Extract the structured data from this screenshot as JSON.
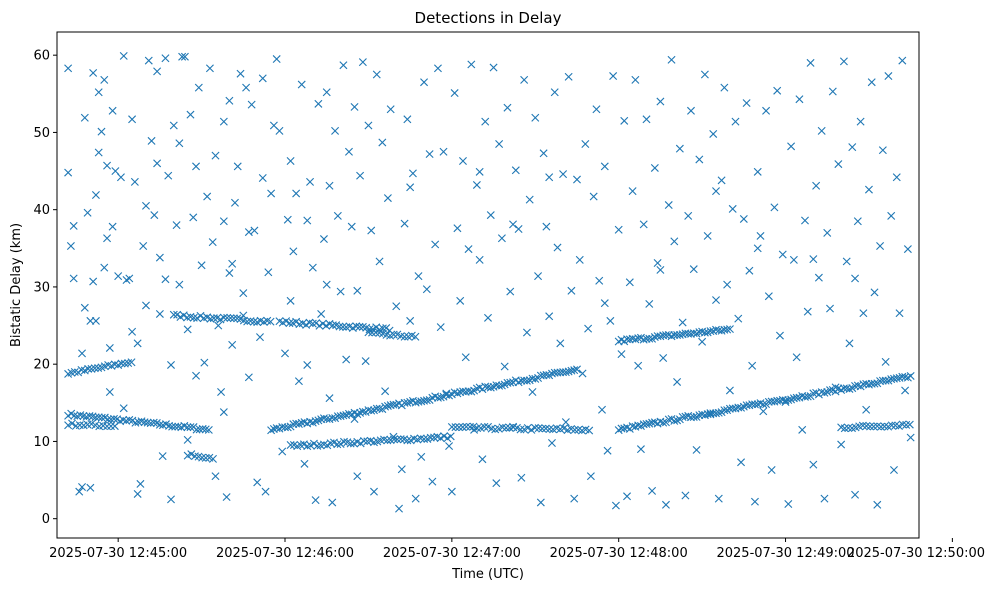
{
  "chart_data": {
    "type": "scatter",
    "title": "Detections in Delay",
    "xlabel": "Time (UTC)",
    "ylabel": "Bistatic Delay (km)",
    "marker": "x",
    "color": "#1f77b4",
    "x_unit": "seconds after 2025-07-30 12:44:40 UTC",
    "xlim": [
      -2,
      308
    ],
    "ylim": [
      -2.5,
      63
    ],
    "x_ticks": [
      {
        "value": 20,
        "label": "2025-07-30 12:45:00"
      },
      {
        "value": 80,
        "label": "2025-07-30 12:46:00"
      },
      {
        "value": 140,
        "label": "2025-07-30 12:47:00"
      },
      {
        "value": 200,
        "label": "2025-07-30 12:48:00"
      },
      {
        "value": 260,
        "label": "2025-07-30 12:49:00"
      },
      {
        "value": 320,
        "label": "2025-07-30 12:50:00"
      }
    ],
    "y_ticks": [
      {
        "value": 0,
        "label": "0"
      },
      {
        "value": 10,
        "label": "10"
      },
      {
        "value": 20,
        "label": "20"
      },
      {
        "value": 30,
        "label": "30"
      },
      {
        "value": 40,
        "label": "40"
      },
      {
        "value": 50,
        "label": "50"
      },
      {
        "value": 60,
        "label": "60"
      }
    ],
    "tracks": [
      {
        "name": "track-lower-1",
        "x_start": 2,
        "x_end": 53,
        "y_start": 13.5,
        "y_end": 11.5,
        "step": 1.1
      },
      {
        "name": "track-lower-2",
        "x_start": 2,
        "x_end": 20,
        "y_start": 12.2,
        "y_end": 12.0,
        "step": 1.4
      },
      {
        "name": "track-rise-1",
        "x_start": 2,
        "x_end": 25,
        "y_start": 18.8,
        "y_end": 20.3,
        "step": 1.2
      },
      {
        "name": "track-upper-1",
        "x_start": 40,
        "x_end": 75,
        "y_start": 26.3,
        "y_end": 25.5,
        "step": 1.2
      },
      {
        "name": "track-upper-2",
        "x_start": 78,
        "x_end": 118,
        "y_start": 25.5,
        "y_end": 24.5,
        "step": 1.2
      },
      {
        "name": "track-upper-3",
        "x_start": 110,
        "x_end": 128,
        "y_start": 24.0,
        "y_end": 23.5,
        "step": 1.3
      },
      {
        "name": "track-long-rise",
        "x_start": 75,
        "x_end": 185,
        "y_start": 11.5,
        "y_end": 19.3,
        "step": 1.0
      },
      {
        "name": "track-mid-flat",
        "x_start": 140,
        "x_end": 190,
        "y_start": 11.8,
        "y_end": 11.5,
        "step": 1.3
      },
      {
        "name": "track-low-flat",
        "x_start": 82,
        "x_end": 140,
        "y_start": 9.4,
        "y_end": 10.6,
        "step": 1.2
      },
      {
        "name": "track-right-rise",
        "x_start": 200,
        "x_end": 305,
        "y_start": 11.5,
        "y_end": 18.4,
        "step": 1.0
      },
      {
        "name": "track-right-upper",
        "x_start": 200,
        "x_end": 240,
        "y_start": 23.0,
        "y_end": 24.5,
        "step": 1.0
      },
      {
        "name": "track-right-low",
        "x_start": 280,
        "x_end": 305,
        "y_start": 11.8,
        "y_end": 12.2,
        "step": 1.3
      },
      {
        "name": "track-low-dip",
        "x_start": 45,
        "x_end": 55,
        "y_start": 8.3,
        "y_end": 7.8,
        "step": 1.3
      }
    ],
    "scatter_points": [
      [
        2,
        58.3
      ],
      [
        2,
        44.8
      ],
      [
        3,
        35.3
      ],
      [
        4,
        37.9
      ],
      [
        4,
        31.1
      ],
      [
        6,
        3.5
      ],
      [
        7,
        4.1
      ],
      [
        7,
        21.4
      ],
      [
        8,
        27.3
      ],
      [
        8,
        51.9
      ],
      [
        9,
        39.6
      ],
      [
        10,
        4.0
      ],
      [
        11,
        57.7
      ],
      [
        11,
        30.7
      ],
      [
        12,
        25.6
      ],
      [
        12,
        41.9
      ],
      [
        13,
        55.2
      ],
      [
        13,
        47.4
      ],
      [
        14,
        50.1
      ],
      [
        15,
        32.5
      ],
      [
        15,
        56.8
      ],
      [
        16,
        36.3
      ],
      [
        16,
        45.7
      ],
      [
        17,
        22.1
      ],
      [
        17,
        16.4
      ],
      [
        18,
        52.8
      ],
      [
        18,
        37.8
      ],
      [
        19,
        45.0
      ],
      [
        20,
        31.4
      ],
      [
        21,
        44.2
      ],
      [
        22,
        59.9
      ],
      [
        22,
        14.3
      ],
      [
        23,
        30.9
      ],
      [
        24,
        31.1
      ],
      [
        25,
        24.2
      ],
      [
        25,
        51.7
      ],
      [
        26,
        43.6
      ],
      [
        27,
        3.2
      ],
      [
        27,
        22.7
      ],
      [
        28,
        4.5
      ],
      [
        29,
        35.3
      ],
      [
        30,
        27.6
      ],
      [
        30,
        40.5
      ],
      [
        31,
        59.3
      ],
      [
        32,
        48.9
      ],
      [
        33,
        39.3
      ],
      [
        34,
        57.9
      ],
      [
        34,
        46.0
      ],
      [
        35,
        33.8
      ],
      [
        35,
        26.5
      ],
      [
        36,
        8.1
      ],
      [
        37,
        59.6
      ],
      [
        37,
        31.0
      ],
      [
        38,
        44.4
      ],
      [
        39,
        19.9
      ],
      [
        39,
        2.5
      ],
      [
        40,
        50.9
      ],
      [
        41,
        38.0
      ],
      [
        42,
        48.6
      ],
      [
        42,
        30.3
      ],
      [
        43,
        59.8
      ],
      [
        44,
        59.8
      ],
      [
        45,
        24.5
      ],
      [
        45,
        10.2
      ],
      [
        46,
        52.3
      ],
      [
        47,
        39.0
      ],
      [
        48,
        18.5
      ],
      [
        48,
        45.6
      ],
      [
        49,
        55.8
      ],
      [
        50,
        32.8
      ],
      [
        51,
        20.2
      ],
      [
        52,
        41.7
      ],
      [
        53,
        58.3
      ],
      [
        54,
        35.8
      ],
      [
        55,
        5.5
      ],
      [
        55,
        47.0
      ],
      [
        56,
        25.0
      ],
      [
        57,
        16.4
      ],
      [
        58,
        51.4
      ],
      [
        58,
        38.5
      ],
      [
        59,
        2.8
      ],
      [
        60,
        54.1
      ],
      [
        61,
        33.0
      ],
      [
        61,
        22.5
      ],
      [
        62,
        40.9
      ],
      [
        63,
        45.6
      ],
      [
        64,
        57.6
      ],
      [
        65,
        29.2
      ],
      [
        66,
        55.8
      ],
      [
        67,
        37.1
      ],
      [
        67,
        18.3
      ],
      [
        68,
        53.6
      ],
      [
        69,
        37.3
      ],
      [
        70,
        4.7
      ],
      [
        71,
        23.5
      ],
      [
        72,
        57.0
      ],
      [
        72,
        44.1
      ],
      [
        73,
        3.5
      ],
      [
        74,
        31.9
      ],
      [
        75,
        42.1
      ],
      [
        76,
        50.9
      ],
      [
        77,
        59.5
      ],
      [
        78,
        50.2
      ],
      [
        79,
        8.7
      ],
      [
        80,
        21.4
      ],
      [
        81,
        38.7
      ],
      [
        82,
        46.3
      ],
      [
        82,
        28.2
      ],
      [
        83,
        34.6
      ],
      [
        84,
        42.1
      ],
      [
        85,
        17.8
      ],
      [
        86,
        56.2
      ],
      [
        87,
        7.1
      ],
      [
        88,
        38.6
      ],
      [
        88,
        19.9
      ],
      [
        89,
        43.6
      ],
      [
        90,
        32.5
      ],
      [
        91,
        2.4
      ],
      [
        92,
        53.7
      ],
      [
        93,
        26.5
      ],
      [
        94,
        36.2
      ],
      [
        95,
        55.2
      ],
      [
        96,
        15.6
      ],
      [
        96,
        43.1
      ],
      [
        97,
        2.1
      ],
      [
        98,
        50.2
      ],
      [
        99,
        39.2
      ],
      [
        100,
        29.4
      ],
      [
        101,
        58.7
      ],
      [
        102,
        20.6
      ],
      [
        103,
        47.5
      ],
      [
        104,
        37.8
      ],
      [
        105,
        53.3
      ],
      [
        106,
        29.5
      ],
      [
        106,
        5.5
      ],
      [
        107,
        44.4
      ],
      [
        108,
        59.1
      ],
      [
        109,
        20.4
      ],
      [
        110,
        50.9
      ],
      [
        111,
        37.3
      ],
      [
        112,
        3.5
      ],
      [
        113,
        57.5
      ],
      [
        114,
        33.3
      ],
      [
        115,
        48.7
      ],
      [
        116,
        16.5
      ],
      [
        117,
        41.5
      ],
      [
        118,
        53.0
      ],
      [
        119,
        10.6
      ],
      [
        120,
        27.5
      ],
      [
        121,
        1.3
      ],
      [
        122,
        6.4
      ],
      [
        123,
        38.2
      ],
      [
        124,
        51.7
      ],
      [
        125,
        25.6
      ],
      [
        126,
        44.7
      ],
      [
        127,
        2.6
      ],
      [
        128,
        31.4
      ],
      [
        129,
        8.0
      ],
      [
        130,
        56.5
      ],
      [
        131,
        29.7
      ],
      [
        132,
        47.2
      ],
      [
        133,
        4.8
      ],
      [
        134,
        35.5
      ],
      [
        135,
        58.3
      ],
      [
        136,
        24.8
      ],
      [
        137,
        47.5
      ],
      [
        138,
        16.2
      ],
      [
        139,
        9.4
      ],
      [
        140,
        3.5
      ],
      [
        141,
        55.1
      ],
      [
        142,
        37.6
      ],
      [
        143,
        28.2
      ],
      [
        144,
        46.3
      ],
      [
        145,
        20.9
      ],
      [
        146,
        34.9
      ],
      [
        147,
        58.8
      ],
      [
        148,
        11.5
      ],
      [
        149,
        43.2
      ],
      [
        150,
        33.5
      ],
      [
        151,
        7.7
      ],
      [
        152,
        51.4
      ],
      [
        153,
        26.0
      ],
      [
        154,
        39.3
      ],
      [
        155,
        58.4
      ],
      [
        156,
        4.6
      ],
      [
        157,
        48.5
      ],
      [
        158,
        36.3
      ],
      [
        159,
        19.7
      ],
      [
        160,
        53.2
      ],
      [
        161,
        29.4
      ],
      [
        162,
        11.9
      ],
      [
        163,
        45.1
      ],
      [
        164,
        37.5
      ],
      [
        165,
        5.3
      ],
      [
        166,
        56.8
      ],
      [
        167,
        24.1
      ],
      [
        168,
        41.3
      ],
      [
        169,
        16.4
      ],
      [
        170,
        51.9
      ],
      [
        171,
        31.4
      ],
      [
        172,
        2.1
      ],
      [
        173,
        47.3
      ],
      [
        174,
        37.8
      ],
      [
        175,
        26.2
      ],
      [
        176,
        9.8
      ],
      [
        177,
        55.2
      ],
      [
        178,
        35.1
      ],
      [
        179,
        22.7
      ],
      [
        180,
        44.6
      ],
      [
        181,
        12.5
      ],
      [
        182,
        57.2
      ],
      [
        183,
        29.5
      ],
      [
        184,
        2.6
      ],
      [
        185,
        43.9
      ],
      [
        186,
        33.5
      ],
      [
        187,
        18.8
      ],
      [
        188,
        48.5
      ],
      [
        189,
        24.6
      ],
      [
        190,
        5.5
      ],
      [
        191,
        41.7
      ],
      [
        192,
        53.0
      ],
      [
        193,
        30.8
      ],
      [
        194,
        14.1
      ],
      [
        195,
        45.6
      ],
      [
        196,
        8.8
      ],
      [
        197,
        25.6
      ],
      [
        198,
        57.3
      ],
      [
        199,
        1.7
      ],
      [
        200,
        37.4
      ],
      [
        201,
        21.3
      ],
      [
        202,
        51.5
      ],
      [
        203,
        2.9
      ],
      [
        204,
        30.6
      ],
      [
        205,
        42.4
      ],
      [
        206,
        56.8
      ],
      [
        207,
        19.8
      ],
      [
        208,
        9.0
      ],
      [
        209,
        38.1
      ],
      [
        210,
        51.7
      ],
      [
        211,
        27.8
      ],
      [
        212,
        3.6
      ],
      [
        213,
        45.4
      ],
      [
        214,
        33.1
      ],
      [
        215,
        54.0
      ],
      [
        216,
        20.8
      ],
      [
        217,
        1.8
      ],
      [
        218,
        40.6
      ],
      [
        219,
        59.4
      ],
      [
        220,
        35.9
      ],
      [
        221,
        17.7
      ],
      [
        222,
        47.9
      ],
      [
        223,
        25.4
      ],
      [
        224,
        3.0
      ],
      [
        225,
        39.2
      ],
      [
        226,
        52.8
      ],
      [
        227,
        32.3
      ],
      [
        228,
        8.9
      ],
      [
        229,
        46.5
      ],
      [
        230,
        22.9
      ],
      [
        231,
        57.5
      ],
      [
        232,
        36.6
      ],
      [
        233,
        13.5
      ],
      [
        234,
        49.8
      ],
      [
        235,
        28.3
      ],
      [
        236,
        2.6
      ],
      [
        237,
        43.8
      ],
      [
        238,
        55.8
      ],
      [
        239,
        30.3
      ],
      [
        240,
        16.6
      ],
      [
        241,
        40.1
      ],
      [
        242,
        51.4
      ],
      [
        243,
        25.9
      ],
      [
        244,
        7.3
      ],
      [
        245,
        38.8
      ],
      [
        246,
        53.8
      ],
      [
        247,
        32.1
      ],
      [
        248,
        19.8
      ],
      [
        249,
        2.2
      ],
      [
        250,
        44.9
      ],
      [
        251,
        36.6
      ],
      [
        252,
        13.9
      ],
      [
        253,
        52.8
      ],
      [
        254,
        28.8
      ],
      [
        255,
        6.3
      ],
      [
        256,
        40.3
      ],
      [
        257,
        55.4
      ],
      [
        258,
        23.7
      ],
      [
        259,
        34.2
      ],
      [
        260,
        15.1
      ],
      [
        261,
        1.9
      ],
      [
        262,
        48.2
      ],
      [
        263,
        33.5
      ],
      [
        264,
        20.9
      ],
      [
        265,
        54.3
      ],
      [
        266,
        11.5
      ],
      [
        267,
        38.6
      ],
      [
        268,
        26.8
      ],
      [
        269,
        59.0
      ],
      [
        270,
        7.0
      ],
      [
        271,
        43.1
      ],
      [
        272,
        31.2
      ],
      [
        273,
        50.2
      ],
      [
        274,
        2.6
      ],
      [
        275,
        37.0
      ],
      [
        276,
        27.2
      ],
      [
        277,
        55.3
      ],
      [
        278,
        17.0
      ],
      [
        279,
        45.9
      ],
      [
        280,
        9.6
      ],
      [
        281,
        59.2
      ],
      [
        282,
        33.3
      ],
      [
        283,
        22.7
      ],
      [
        284,
        48.1
      ],
      [
        285,
        3.1
      ],
      [
        286,
        38.5
      ],
      [
        287,
        51.4
      ],
      [
        288,
        26.6
      ],
      [
        289,
        14.1
      ],
      [
        290,
        42.6
      ],
      [
        291,
        56.5
      ],
      [
        292,
        29.3
      ],
      [
        293,
        1.8
      ],
      [
        294,
        35.3
      ],
      [
        295,
        47.7
      ],
      [
        296,
        20.3
      ],
      [
        297,
        57.3
      ],
      [
        298,
        39.2
      ],
      [
        299,
        6.3
      ],
      [
        300,
        44.2
      ],
      [
        301,
        26.6
      ],
      [
        302,
        59.3
      ],
      [
        303,
        16.6
      ],
      [
        304,
        34.9
      ],
      [
        305,
        10.5
      ],
      [
        60,
        31.8
      ],
      [
        95,
        30.3
      ],
      [
        125,
        42.9
      ],
      [
        150,
        44.9
      ],
      [
        175,
        44.2
      ],
      [
        195,
        27.9
      ],
      [
        215,
        32.2
      ],
      [
        235,
        42.4
      ],
      [
        250,
        35.0
      ],
      [
        270,
        33.6
      ],
      [
        285,
        31.1
      ],
      [
        10,
        25.6
      ],
      [
        58,
        13.8
      ],
      [
        65,
        26.3
      ],
      [
        105,
        12.9
      ],
      [
        162,
        38.1
      ]
    ]
  }
}
